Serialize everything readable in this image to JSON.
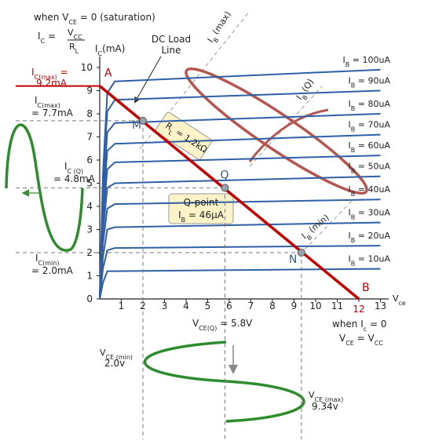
{
  "chart_data": {
    "type": "line",
    "xlim": [
      0,
      13
    ],
    "ylim": [
      0,
      10
    ],
    "xticks": [
      1,
      2,
      3,
      4,
      5,
      6,
      7,
      8,
      9,
      10,
      11,
      12,
      13
    ],
    "yticks": [
      0,
      1,
      2,
      3,
      4,
      5,
      6,
      7,
      8,
      9,
      10
    ],
    "curve_color": "#2f5fa7",
    "x": [
      0,
      0.15,
      0.35,
      0.7,
      13
    ],
    "curves": [
      {
        "label": [
          "I",
          "B",
          " = 100uA"
        ],
        "values": [
          0,
          5.4,
          8.9,
          9.4,
          9.9
        ]
      },
      {
        "label": [
          "I",
          "B",
          " = 90uA"
        ],
        "values": [
          0,
          5.0,
          8.1,
          8.6,
          9.0
        ]
      },
      {
        "label": [
          "I",
          "B",
          " = 80uA"
        ],
        "values": [
          0,
          4.4,
          7.2,
          7.6,
          8.0
        ]
      },
      {
        "label": [
          "I",
          "B",
          " = 70uA"
        ],
        "values": [
          0,
          3.9,
          6.4,
          6.7,
          7.1
        ]
      },
      {
        "label": [
          "I",
          "B",
          " = 60uA"
        ],
        "values": [
          0,
          3.4,
          5.6,
          5.9,
          6.2
        ]
      },
      {
        "label": [
          "I",
          "B",
          " = 50uA"
        ],
        "values": [
          0,
          2.9,
          4.8,
          5.0,
          5.3
        ]
      },
      {
        "label": [
          "I",
          "B",
          " = 40uA"
        ],
        "values": [
          0,
          2.4,
          3.9,
          4.1,
          4.3
        ]
      },
      {
        "label": [
          "I",
          "B",
          " = 30uA"
        ],
        "values": [
          0,
          1.8,
          3.0,
          3.1,
          3.3
        ]
      },
      {
        "label": [
          "I",
          "B",
          " = 20uA"
        ],
        "values": [
          0,
          1.3,
          2.1,
          2.2,
          2.3
        ]
      },
      {
        "label": [
          "I",
          "B",
          " = 10uA"
        ],
        "values": [
          0,
          0.7,
          1.2,
          1.2,
          1.3
        ]
      }
    ],
    "load_line": {
      "x": [
        0,
        12
      ],
      "values": [
        9.2,
        0
      ],
      "color": "#c00000"
    },
    "points": [
      {
        "label": "A",
        "x": 0,
        "y": 9.2
      },
      {
        "label": "B",
        "x": 12,
        "y": 0
      },
      {
        "label": "M",
        "x": 2,
        "y": 7.7
      },
      {
        "label": "Q",
        "x": 5.8,
        "y": 4.8
      },
      {
        "label": "N",
        "x": 9.34,
        "y": 2.0
      }
    ],
    "annotations": [
      [
        "when V",
        "CE",
        " = 0  (saturation)"
      ],
      [
        "I",
        "C",
        " = "
      ],
      [
        "V",
        "CC"
      ],
      [
        "R",
        "L"
      ],
      [
        "I",
        "C(max)",
        " ="
      ],
      [
        "9.2mA"
      ],
      [
        "I",
        "C(max)"
      ],
      [
        "= 7.7mA"
      ],
      [
        "I",
        "C (Q)"
      ],
      [
        "= 4.8mA"
      ],
      [
        "I",
        "C(min)"
      ],
      [
        "= 2.0mA"
      ],
      [
        "DC Load"
      ],
      [
        "Line"
      ],
      [
        "I",
        "C",
        "(mA)"
      ],
      [
        "V",
        "ce"
      ],
      [
        "V",
        "CE(Q)",
        " = 5.8V"
      ],
      [
        "V",
        "CE (min)"
      ],
      [
        "2.0v"
      ],
      [
        "V",
        "CE (max)"
      ],
      [
        "9.34v"
      ],
      [
        "when I",
        "c",
        " = 0"
      ],
      [
        "V",
        "CE",
        " = V",
        "CC"
      ],
      [
        "Q-point"
      ],
      [
        "I",
        "B",
        " = 46μA"
      ],
      [
        "I",
        "B",
        " (max)"
      ],
      [
        "I",
        "B",
        " (Q)"
      ],
      [
        "I",
        "B",
        " (min)"
      ],
      [
        "R",
        "L",
        " = 1.2kΩ"
      ]
    ]
  }
}
